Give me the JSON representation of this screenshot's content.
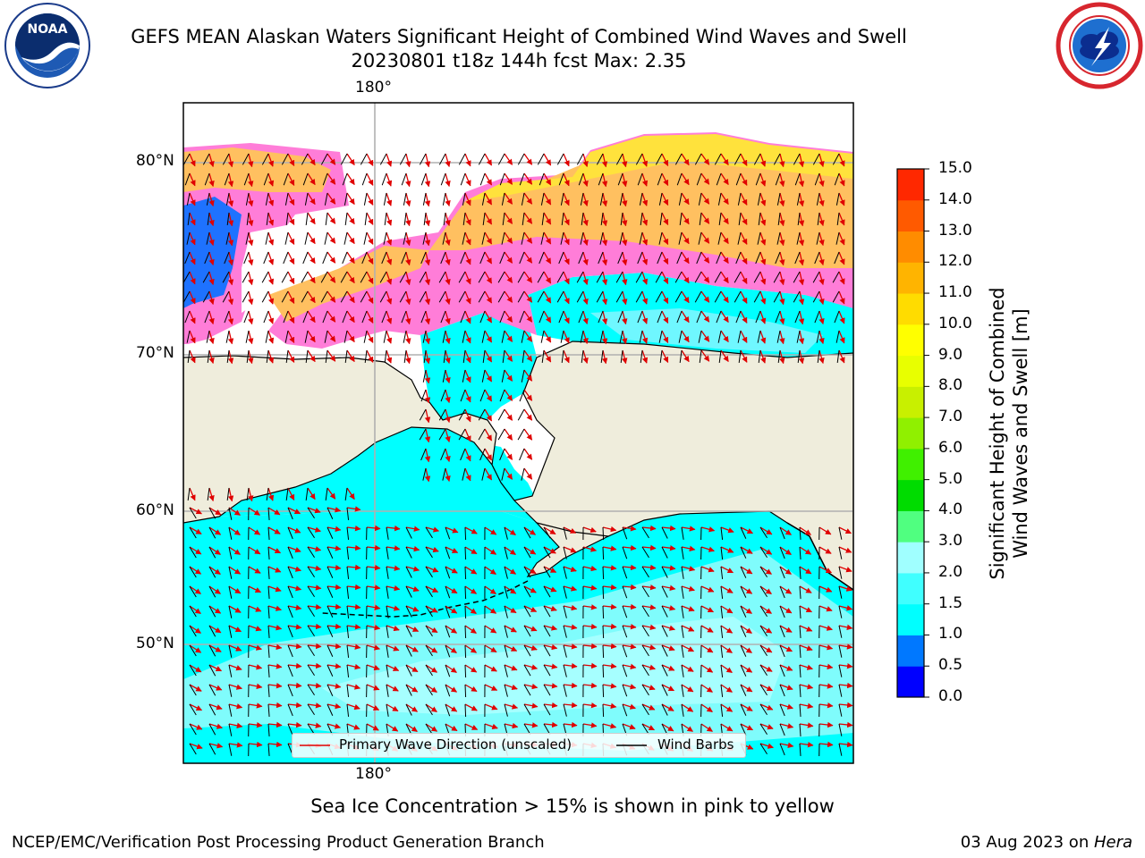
{
  "header": {
    "title_line1": "GEFS MEAN Alaskan Waters Significant Height of Combined Wind Waves and Swell",
    "title_line2": "20230801 t18z 144h fcst   Max: 2.35"
  },
  "logos": {
    "noaa_text": "NOAA",
    "noaa_ring_text": "NATIONAL OCEANIC AND ATMOSPHERIC ADMINISTRATION · U.S. DEPARTMENT OF COMMERCE",
    "nws_ring_text": "NATIONAL WEATHER SERVICE"
  },
  "map": {
    "lon_label_top": "180°",
    "lon_label_bottom": "180°",
    "lat_labels": [
      "80°N",
      "70°N",
      "60°N",
      "50°N"
    ],
    "legend": {
      "wave_direction": "Primary Wave Direction (unscaled)",
      "wind_barbs": "Wind Barbs"
    }
  },
  "colorbar": {
    "label_line1": "Significant Height of Combined",
    "label_line2": "Wind Waves and Swell [m]",
    "ticks": [
      "0.0",
      "0.5",
      "1.0",
      "1.5",
      "2.0",
      "3.0",
      "4.0",
      "5.0",
      "6.0",
      "7.0",
      "8.0",
      "9.0",
      "10.0",
      "11.0",
      "12.0",
      "13.0",
      "14.0",
      "15.0"
    ],
    "colors": [
      "#0000ff",
      "#0078ff",
      "#00ffff",
      "#40ffff",
      "#a0ffff",
      "#50ff80",
      "#00dc00",
      "#40f000",
      "#90f000",
      "#c8f000",
      "#e8ff00",
      "#ffff00",
      "#ffdc00",
      "#ffb400",
      "#ff8c00",
      "#ff5a00",
      "#ff2800"
    ]
  },
  "ice_note": "Sea Ice Concentration > 15% is shown in pink to yellow",
  "footer": {
    "left": "NCEP/EMC/Verification Post Processing Product Generation Branch",
    "right_prefix": "03 Aug 2023 on ",
    "right_host": "Hera"
  }
}
